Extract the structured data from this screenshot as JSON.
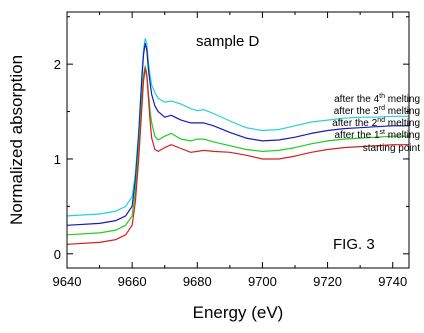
{
  "chart_data": {
    "type": "line",
    "title": "sample D",
    "xlabel": "Energy (eV)",
    "ylabel": "Normalized absorption",
    "annotation": "FIG. 3",
    "xlim": [
      9640,
      9745
    ],
    "ylim": [
      -0.15,
      2.55
    ],
    "xticks": [
      9640,
      9660,
      9680,
      9700,
      9720,
      9740
    ],
    "yticks": [
      0,
      1,
      2
    ],
    "grid": false,
    "legend_position": "right",
    "series": [
      {
        "name": "after the 4th melting",
        "color": "#22d3d8",
        "label_main": "after the 4",
        "label_sup": "th",
        "label_tail": " melting",
        "x": [
          9640,
          9650,
          9655,
          9658,
          9660,
          9661,
          9662,
          9663,
          9663.5,
          9664,
          9664.5,
          9665,
          9665.5,
          9666,
          9667,
          9668,
          9670,
          9672,
          9675,
          9678,
          9680,
          9682,
          9685,
          9690,
          9695,
          9700,
          9705,
          9710,
          9715,
          9720,
          9725,
          9730,
          9735,
          9740,
          9745
        ],
        "y": [
          0.4,
          0.42,
          0.45,
          0.5,
          0.6,
          0.85,
          1.3,
          1.9,
          2.15,
          2.27,
          2.22,
          2.02,
          1.88,
          1.78,
          1.7,
          1.64,
          1.6,
          1.61,
          1.58,
          1.53,
          1.51,
          1.52,
          1.48,
          1.4,
          1.33,
          1.3,
          1.31,
          1.35,
          1.39,
          1.41,
          1.43,
          1.44,
          1.44,
          1.45,
          1.45
        ]
      },
      {
        "name": "after the 3rd melting",
        "color": "#1a1ab8",
        "label_main": "after the 3",
        "label_sup": "rd",
        "label_tail": " melting",
        "x": [
          9640,
          9650,
          9655,
          9658,
          9660,
          9661,
          9662,
          9663,
          9663.5,
          9664,
          9664.5,
          9665,
          9665.5,
          9666,
          9667,
          9668,
          9670,
          9672,
          9675,
          9678,
          9680,
          9682,
          9685,
          9690,
          9695,
          9700,
          9705,
          9710,
          9715,
          9720,
          9725,
          9730,
          9735,
          9740,
          9745
        ],
        "y": [
          0.3,
          0.32,
          0.35,
          0.4,
          0.5,
          0.78,
          1.25,
          1.85,
          2.1,
          2.22,
          2.15,
          1.95,
          1.8,
          1.68,
          1.56,
          1.5,
          1.44,
          1.46,
          1.41,
          1.38,
          1.38,
          1.38,
          1.35,
          1.28,
          1.22,
          1.19,
          1.2,
          1.23,
          1.27,
          1.3,
          1.32,
          1.33,
          1.34,
          1.35,
          1.35
        ]
      },
      {
        "name": "after the 2nd melting",
        "color": "#22cc22",
        "label_main": "after the 2",
        "label_sup": "nd",
        "label_tail": " melting",
        "x": [
          9640,
          9650,
          9655,
          9658,
          9660,
          9661,
          9662,
          9663,
          9663.5,
          9664,
          9664.5,
          9665,
          9665.5,
          9666,
          9667,
          9668,
          9670,
          9672,
          9675,
          9678,
          9680,
          9682,
          9685,
          9690,
          9695,
          9700,
          9705,
          9710,
          9715,
          9720,
          9725,
          9730,
          9735,
          9740,
          9745
        ],
        "y": [
          0.2,
          0.22,
          0.25,
          0.3,
          0.4,
          0.66,
          1.12,
          1.65,
          1.88,
          1.98,
          1.9,
          1.7,
          1.5,
          1.38,
          1.24,
          1.2,
          1.24,
          1.27,
          1.21,
          1.19,
          1.21,
          1.21,
          1.18,
          1.14,
          1.1,
          1.08,
          1.09,
          1.12,
          1.16,
          1.19,
          1.21,
          1.22,
          1.23,
          1.24,
          1.24
        ]
      },
      {
        "name": "after the 1st melting",
        "color": "#d81e1e",
        "label_main": "after the 1",
        "label_sup": "st",
        "label_tail": " melting",
        "x": [
          9640,
          9650,
          9655,
          9658,
          9660,
          9661,
          9662,
          9663,
          9663.5,
          9664,
          9664.5,
          9665,
          9665.5,
          9666,
          9667,
          9668,
          9670,
          9672,
          9675,
          9678,
          9680,
          9682,
          9685,
          9690,
          9695,
          9700,
          9705,
          9710,
          9715,
          9720,
          9725,
          9730,
          9735,
          9740,
          9745
        ],
        "y": [
          0.1,
          0.12,
          0.15,
          0.2,
          0.3,
          0.55,
          1.0,
          1.55,
          1.82,
          1.95,
          1.88,
          1.65,
          1.4,
          1.22,
          1.1,
          1.08,
          1.12,
          1.15,
          1.11,
          1.07,
          1.08,
          1.09,
          1.08,
          1.07,
          1.04,
          1.0,
          1.0,
          1.03,
          1.07,
          1.1,
          1.12,
          1.13,
          1.14,
          1.15,
          1.15
        ]
      },
      {
        "name": "starting point",
        "color": "#000000",
        "label_main": "starting point",
        "label_sup": "",
        "label_tail": "",
        "x": [],
        "y": []
      }
    ]
  }
}
